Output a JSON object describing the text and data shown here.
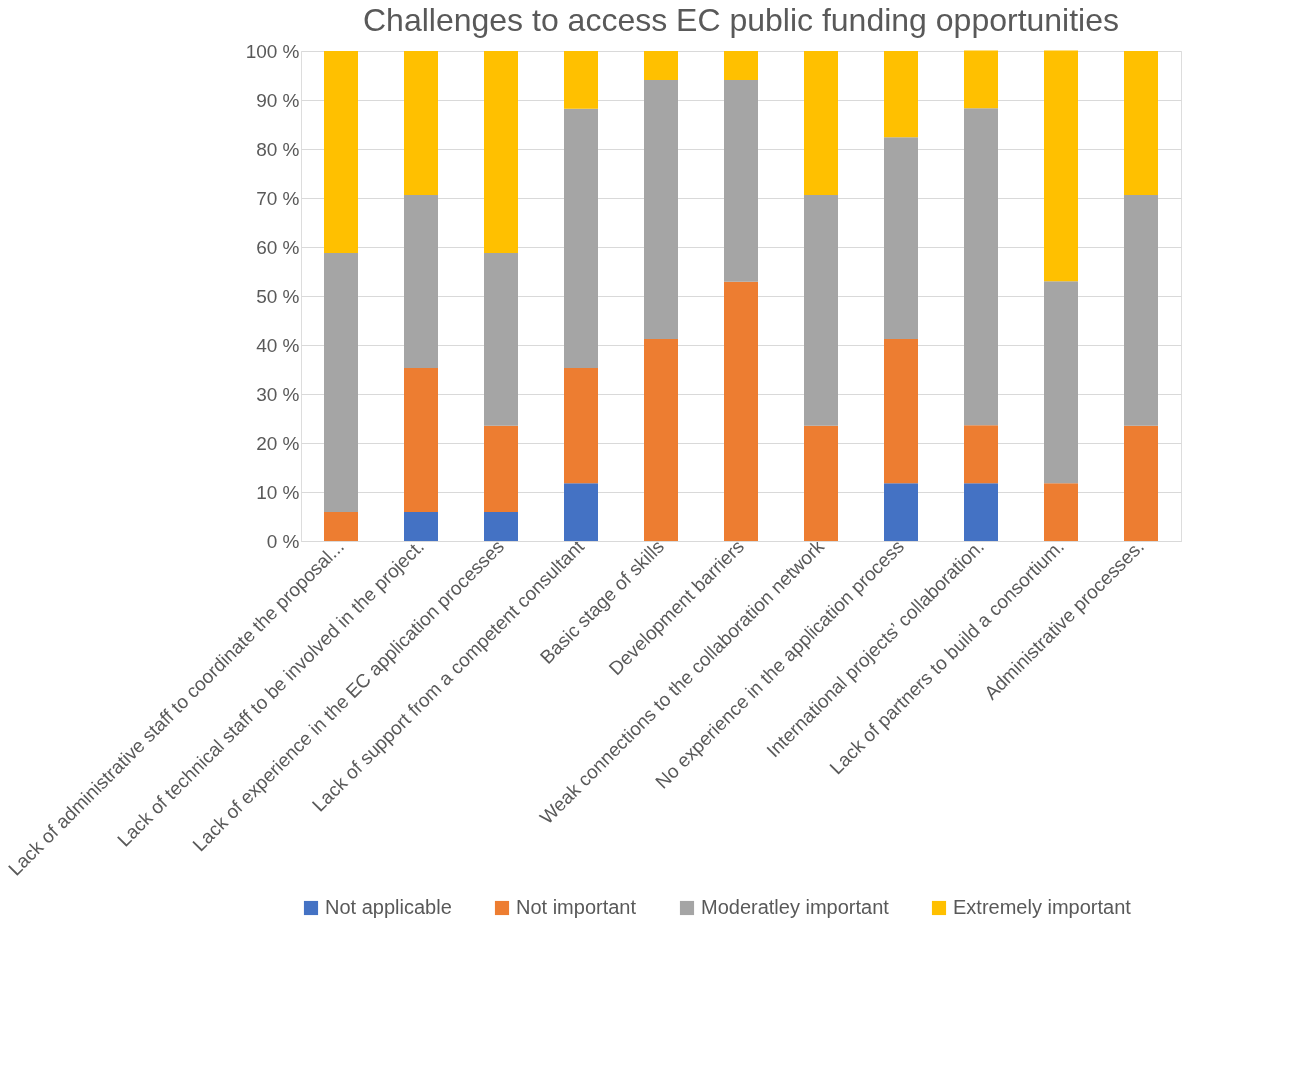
{
  "chart_data": {
    "type": "bar",
    "title": "Challenges to access EC public funding opportunities",
    "categories": [
      "Lack of administrative staff to coordinate the proposal...",
      "Lack of technical staff to be involved in the project.",
      "Lack of experience in the EC application processes",
      "Lack of support from a competent consultant",
      "Basic stage of skills",
      "Development barriers",
      "Weak connections to the collaboration network",
      "No experience in the application process",
      "International projects’ collaboration.",
      "Lack of partners to build a consortium.",
      "Administrative processes."
    ],
    "series": [
      {
        "name": "Not applicable",
        "color": "#4472c4",
        "values": [
          0,
          5.9,
          5.9,
          11.8,
          0,
          0,
          0,
          11.8,
          11.8,
          0,
          0
        ]
      },
      {
        "name": "Not important",
        "color": "#ed7d31",
        "values": [
          5.9,
          29.4,
          17.6,
          23.5,
          41.2,
          52.9,
          23.5,
          29.4,
          11.8,
          11.8,
          23.5
        ]
      },
      {
        "name": "Moderatley important",
        "color": "#a5a5a5",
        "values": [
          52.9,
          35.3,
          35.3,
          52.9,
          52.9,
          41.2,
          47.1,
          41.2,
          64.7,
          41.2,
          47.1
        ]
      },
      {
        "name": "Extremely important",
        "color": "#ffc000",
        "values": [
          41.2,
          29.4,
          41.2,
          11.8,
          5.9,
          5.9,
          29.4,
          17.6,
          11.8,
          47.1,
          29.4
        ]
      }
    ],
    "stacked": true,
    "ylim": [
      0,
      100
    ],
    "yticks": [
      {
        "value": 0,
        "label": "0 %"
      },
      {
        "value": 10,
        "label": "10 %"
      },
      {
        "value": 20,
        "label": "20 %"
      },
      {
        "value": 30,
        "label": "30 %"
      },
      {
        "value": 40,
        "label": "40 %"
      },
      {
        "value": 50,
        "label": "50 %"
      },
      {
        "value": 60,
        "label": "60 %"
      },
      {
        "value": 70,
        "label": "70 %"
      },
      {
        "value": 80,
        "label": "80 %"
      },
      {
        "value": 90,
        "label": "90 %"
      },
      {
        "value": 100,
        "label": "100 %"
      }
    ],
    "grid": "y",
    "legend": "bottom"
  }
}
